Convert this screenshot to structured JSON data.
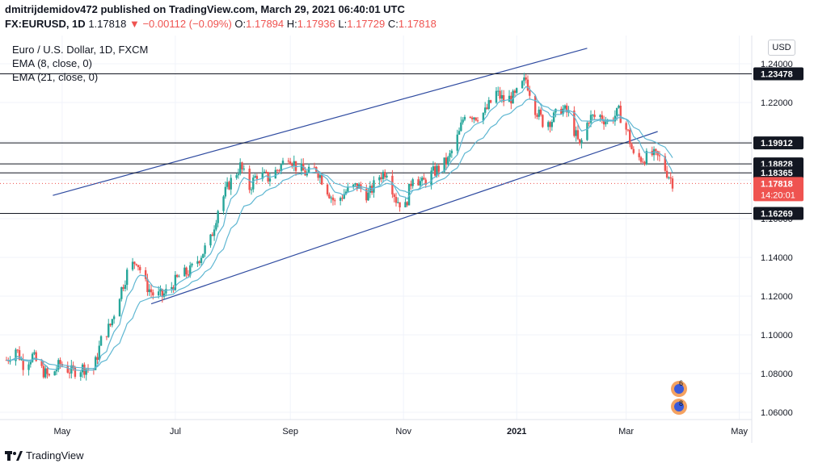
{
  "header": {
    "line1": "dmitrijdemidov472 published on TradingView.com, March 29, 2021 06:40:01 UTC",
    "symbol": "FX:EURUSD, 1D",
    "last": "1.17818",
    "change": "−0.00112 (−0.09%)",
    "o_label": "O:",
    "o": "1.17894",
    "h_label": "H:",
    "h": "1.17936",
    "l_label": "L:",
    "l": "1.17729",
    "c_label": "C:",
    "c": "1.17818"
  },
  "legend": {
    "title": "Euro / U.S. Dollar, 1D, FXCM",
    "ema1": "EMA (8, close, 0)",
    "ema2": "EMA (21, close, 0)"
  },
  "currency_button": "USD",
  "footer": {
    "brand": "TradingView"
  },
  "colors": {
    "up": "#26a69a",
    "down": "#ef5350",
    "ema8": "#5fb7d2",
    "ema21": "#5fb7d2",
    "channel": "#2f4ba0",
    "hline": "#131722",
    "grid": "#f0f3fa"
  },
  "chart_data": {
    "type": "candlestick",
    "title": "Euro / U.S. Dollar, 1D, FXCM",
    "x_ticks": [
      "May",
      "Jul",
      "Sep",
      "Nov",
      "2021",
      "Mar",
      "May"
    ],
    "y_ticks": [
      "1.24000",
      "1.22000",
      "1.20000",
      "1.18000",
      "1.16000",
      "1.14000",
      "1.12000",
      "1.10000",
      "1.08000",
      "1.06000"
    ],
    "ylim": [
      1.055,
      1.248
    ],
    "current_price": {
      "value": 1.17818,
      "label": "1.17818",
      "countdown": "14:20:01"
    },
    "horizontal_levels": [
      {
        "value": 1.23478,
        "label": "1.23478"
      },
      {
        "value": 1.19912,
        "label": "1.19912"
      },
      {
        "value": 1.18828,
        "label": "1.18828"
      },
      {
        "value": 1.18365,
        "label": "1.18365"
      },
      {
        "value": 1.16269,
        "label": "1.16269"
      }
    ],
    "price_path": [
      [
        "2020-04-01",
        1.087
      ],
      [
        "2020-04-06",
        1.093
      ],
      [
        "2020-04-10",
        1.085
      ],
      [
        "2020-04-15",
        1.089
      ],
      [
        "2020-04-20",
        1.082
      ],
      [
        "2020-04-24",
        1.078
      ],
      [
        "2020-04-30",
        1.085
      ],
      [
        "2020-05-06",
        1.081
      ],
      [
        "2020-05-12",
        1.083
      ],
      [
        "2020-05-18",
        1.082
      ],
      [
        "2020-05-22",
        1.097
      ],
      [
        "2020-05-27",
        1.105
      ],
      [
        "2020-06-01",
        1.121
      ],
      [
        "2020-06-05",
        1.132
      ],
      [
        "2020-06-10",
        1.139
      ],
      [
        "2020-06-15",
        1.126
      ],
      [
        "2020-06-19",
        1.121
      ],
      [
        "2020-06-24",
        1.12
      ],
      [
        "2020-06-29",
        1.125
      ],
      [
        "2020-07-03",
        1.13
      ],
      [
        "2020-07-09",
        1.133
      ],
      [
        "2020-07-14",
        1.14
      ],
      [
        "2020-07-20",
        1.149
      ],
      [
        "2020-07-24",
        1.165
      ],
      [
        "2020-07-30",
        1.178
      ],
      [
        "2020-08-05",
        1.187
      ],
      [
        "2020-08-10",
        1.176
      ],
      [
        "2020-08-14",
        1.183
      ],
      [
        "2020-08-20",
        1.181
      ],
      [
        "2020-08-26",
        1.186
      ],
      [
        "2020-08-31",
        1.193
      ],
      [
        "2020-09-04",
        1.187
      ],
      [
        "2020-09-10",
        1.183
      ],
      [
        "2020-09-15",
        1.186
      ],
      [
        "2020-09-21",
        1.175
      ],
      [
        "2020-09-25",
        1.168
      ],
      [
        "2020-10-01",
        1.174
      ],
      [
        "2020-10-07",
        1.177
      ],
      [
        "2020-10-13",
        1.172
      ],
      [
        "2020-10-19",
        1.182
      ],
      [
        "2020-10-23",
        1.185
      ],
      [
        "2020-10-28",
        1.17
      ],
      [
        "2020-11-02",
        1.166
      ],
      [
        "2020-11-06",
        1.183
      ],
      [
        "2020-11-11",
        1.178
      ],
      [
        "2020-11-16",
        1.183
      ],
      [
        "2020-11-20",
        1.186
      ],
      [
        "2020-11-25",
        1.19
      ],
      [
        "2020-12-01",
        1.204
      ],
      [
        "2020-12-04",
        1.215
      ],
      [
        "2020-12-10",
        1.213
      ],
      [
        "2020-12-15",
        1.215
      ],
      [
        "2020-12-21",
        1.225
      ],
      [
        "2020-12-25",
        1.221
      ],
      [
        "2020-12-31",
        1.223
      ],
      [
        "2021-01-06",
        1.232
      ],
      [
        "2021-01-11",
        1.217
      ],
      [
        "2021-01-15",
        1.21
      ],
      [
        "2021-01-20",
        1.211
      ],
      [
        "2021-01-25",
        1.217
      ],
      [
        "2021-01-29",
        1.214
      ],
      [
        "2021-02-04",
        1.197
      ],
      [
        "2021-02-09",
        1.212
      ],
      [
        "2021-02-15",
        1.213
      ],
      [
        "2021-02-19",
        1.21
      ],
      [
        "2021-02-25",
        1.215
      ],
      [
        "2021-03-02",
        1.204
      ],
      [
        "2021-03-05",
        1.192
      ],
      [
        "2021-03-10",
        1.191
      ],
      [
        "2021-03-15",
        1.193
      ],
      [
        "2021-03-19",
        1.191
      ],
      [
        "2021-03-23",
        1.184
      ],
      [
        "2021-03-26",
        1.179
      ]
    ],
    "series": [
      {
        "name": "EMA (8, close, 0)",
        "kind": "line"
      },
      {
        "name": "EMA (21, close, 0)",
        "kind": "line"
      }
    ],
    "trend_lines": [
      {
        "from": [
          "2020-06-18",
          1.116
        ],
        "to": [
          "2021-03-18",
          1.205
        ]
      },
      {
        "from": [
          "2020-04-26",
          1.172
        ],
        "to": [
          "2021-02-08",
          1.248
        ]
      }
    ]
  }
}
